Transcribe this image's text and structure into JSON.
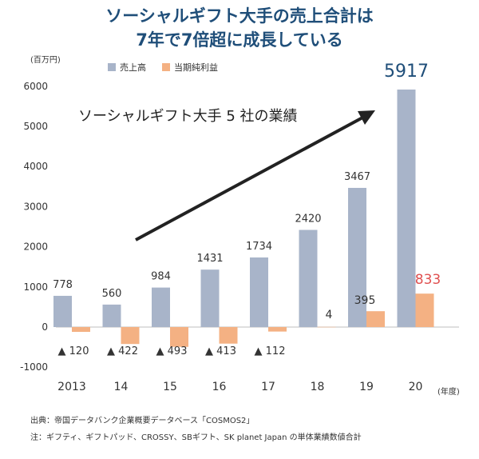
{
  "header": {
    "title_line1": "ソーシャルギフト大手の売上合計は",
    "title_line2": "7年で7倍超に成長している"
  },
  "chart_data": {
    "type": "bar",
    "unit_label": "(百万円)",
    "annotation": "ソーシャルギフト大手 5 社の業績",
    "x_unit": "(年度)",
    "categories": [
      "2013",
      "14",
      "15",
      "16",
      "17",
      "18",
      "19",
      "20"
    ],
    "series": [
      {
        "name": "売上高",
        "color": "#a8b4c9",
        "values": [
          778,
          560,
          984,
          1431,
          1734,
          2420,
          3467,
          5917
        ],
        "labels": [
          "778",
          "560",
          "984",
          "1431",
          "1734",
          "2420",
          "3467",
          "5917"
        ]
      },
      {
        "name": "当期純利益",
        "color": "#f4b183",
        "values": [
          -120,
          -422,
          -493,
          -413,
          -112,
          4,
          395,
          833
        ],
        "labels": [
          "▲ 120",
          "▲ 422",
          "▲ 493",
          "▲ 413",
          "▲ 112",
          "4",
          "395",
          "833"
        ]
      }
    ],
    "ylim": [
      -1000,
      6000
    ],
    "yticks": [
      -1000,
      0,
      1000,
      2000,
      3000,
      4000,
      5000,
      6000
    ],
    "legend_position": "top",
    "grid": false,
    "highlight_color_sales_label": "#1f4e79",
    "highlight_color_profit_label": "#e05050"
  },
  "footer": {
    "source": "出典：帝国データバンク企業概要データベース「COSMOS2」",
    "note": "注：ギフティ、ギフトパッド、CROSSY、SBギフト、SK planet Japan の単体業績数値合計"
  }
}
